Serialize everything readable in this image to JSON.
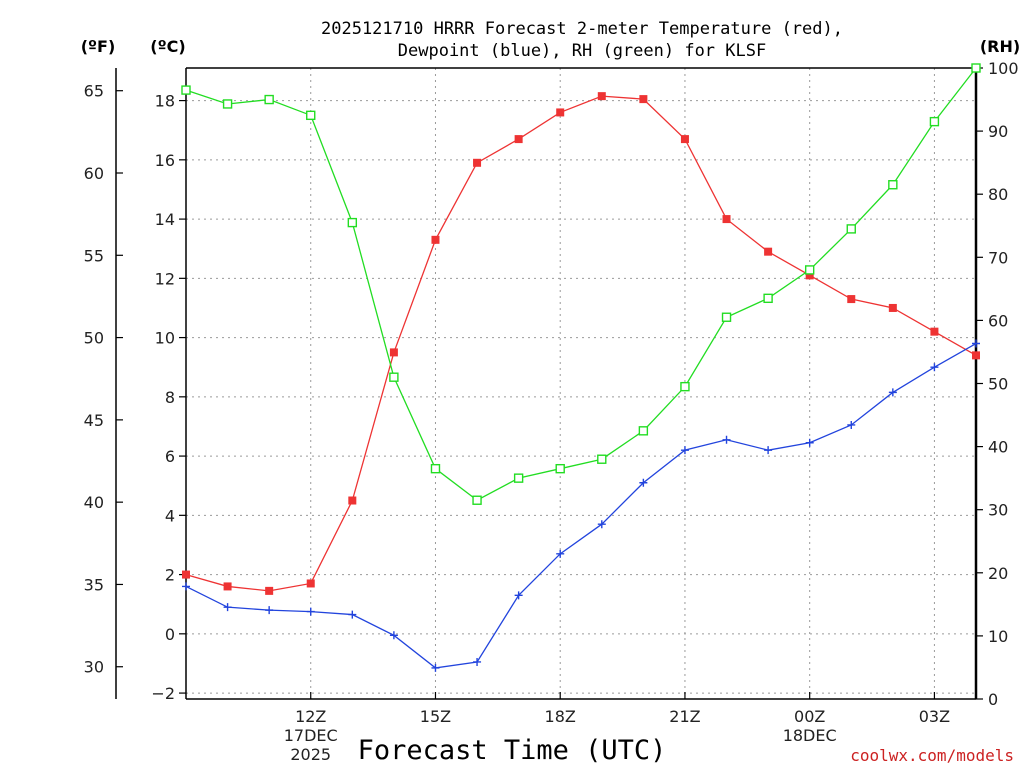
{
  "chart_data": {
    "type": "line",
    "title_lines": [
      "2025121710 HRRR Forecast 2-meter Temperature (red),",
      "Dewpoint (blue), RH (green) for KLSF"
    ],
    "xlabel": "Forecast Time (UTC)",
    "credit": "coolwx.com/models",
    "x_hours": [
      9,
      10,
      11,
      12,
      13,
      14,
      15,
      16,
      17,
      18,
      19,
      20,
      21,
      22,
      23,
      24,
      25,
      26,
      27,
      28
    ],
    "x_range": [
      9,
      28
    ],
    "x_ticks": [
      {
        "hour": 12,
        "lines": [
          "12Z",
          "17DEC",
          "2025"
        ]
      },
      {
        "hour": 15,
        "lines": [
          "15Z"
        ]
      },
      {
        "hour": 18,
        "lines": [
          "18Z"
        ]
      },
      {
        "hour": 21,
        "lines": [
          "21Z"
        ]
      },
      {
        "hour": 24,
        "lines": [
          "00Z",
          "18DEC"
        ]
      },
      {
        "hour": 27,
        "lines": [
          "03Z"
        ]
      }
    ],
    "y_celsius": {
      "unit_label": "(ºC)",
      "range": [
        -2.2,
        19.1
      ],
      "ticks": [
        -2,
        0,
        2,
        4,
        6,
        8,
        10,
        12,
        14,
        16,
        18
      ]
    },
    "y_fahrenheit": {
      "unit_label": "(ºF)",
      "ticks": [
        30,
        35,
        40,
        45,
        50,
        55,
        60,
        65
      ]
    },
    "y_rh": {
      "unit_label": "(RH)",
      "range": [
        0,
        100
      ],
      "ticks": [
        0,
        10,
        20,
        30,
        40,
        50,
        60,
        70,
        80,
        90,
        100
      ]
    },
    "series": [
      {
        "name": "Temperature",
        "axis": "celsius",
        "color": "#ee3333",
        "marker": "filled-square",
        "values": [
          2.0,
          1.6,
          1.45,
          1.7,
          4.5,
          9.5,
          13.3,
          15.9,
          16.7,
          17.6,
          18.15,
          18.05,
          16.7,
          14.0,
          12.9,
          12.1,
          11.3,
          11.0,
          10.2,
          9.4
        ]
      },
      {
        "name": "Dewpoint",
        "axis": "celsius",
        "color": "#2244dd",
        "marker": "plus",
        "values": [
          1.6,
          0.9,
          0.8,
          0.75,
          0.65,
          -0.05,
          -1.15,
          -0.95,
          1.3,
          2.7,
          3.7,
          5.1,
          6.2,
          6.55,
          6.2,
          6.45,
          7.05,
          8.15,
          9.0,
          9.8
        ]
      },
      {
        "name": "RH",
        "axis": "rh",
        "color": "#22dd22",
        "marker": "open-square",
        "values": [
          96.5,
          94.3,
          95.0,
          92.5,
          75.5,
          51.0,
          36.5,
          31.5,
          35.0,
          36.5,
          38.0,
          42.5,
          49.5,
          60.5,
          63.5,
          68.0,
          74.5,
          81.5,
          91.5,
          100.0
        ]
      }
    ]
  }
}
